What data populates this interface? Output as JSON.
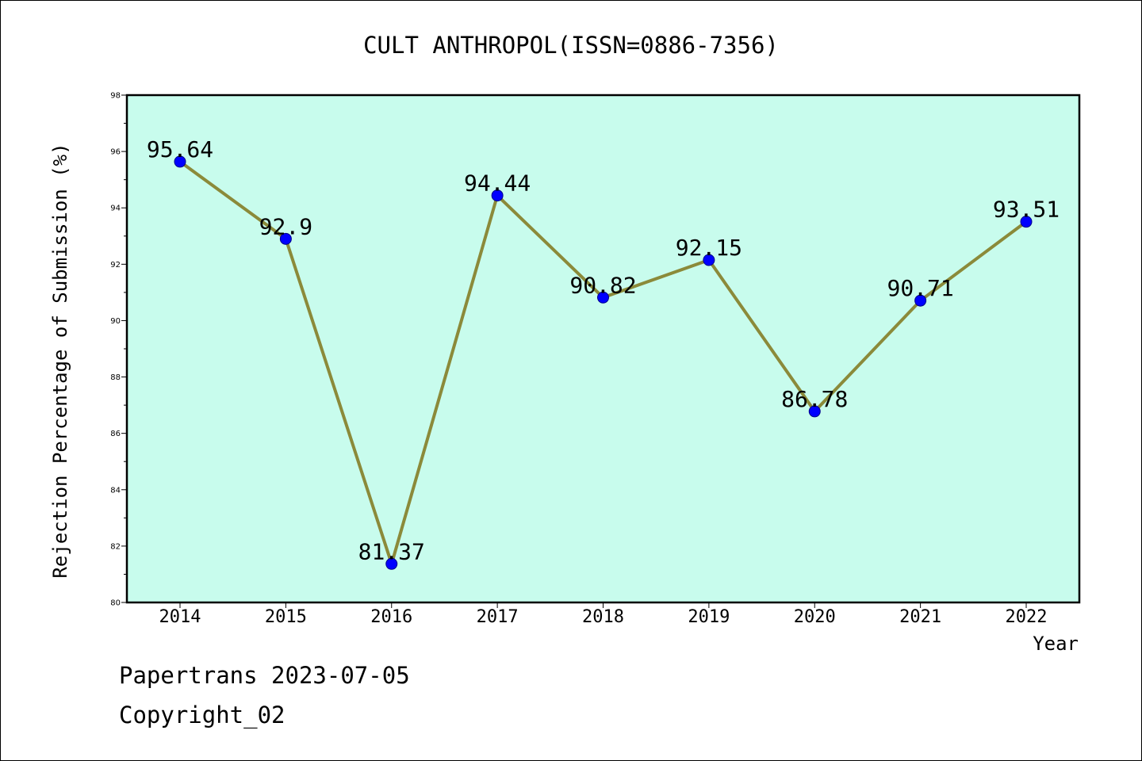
{
  "chart_data": {
    "type": "line",
    "title": "CULT ANTHROPOL(ISSN=0886-7356)",
    "xlabel": "Year",
    "ylabel": "Rejection Percentage of Submission (%)",
    "categories": [
      "2014",
      "2015",
      "2016",
      "2017",
      "2018",
      "2019",
      "2020",
      "2021",
      "2022"
    ],
    "series": [
      {
        "values": [
          95.64,
          92.9,
          81.37,
          94.44,
          90.82,
          92.15,
          86.78,
          90.71,
          93.51
        ]
      }
    ],
    "data_labels": [
      "95.64",
      "92.9",
      "81.37",
      "94.44",
      "90.82",
      "92.15",
      "86.78",
      "90.71",
      "93.51"
    ],
    "ylim": [
      80,
      98
    ],
    "yticks": [
      80,
      82,
      84,
      86,
      88,
      90,
      92,
      94,
      96,
      98
    ],
    "grid": false,
    "legend": "none",
    "colors": {
      "plot_background": "#c8fced",
      "line": "#8b8a3a",
      "marker": "#0000ff"
    }
  },
  "footer": {
    "line1": "Papertrans 2023-07-05",
    "line2": "Copyright_02"
  }
}
